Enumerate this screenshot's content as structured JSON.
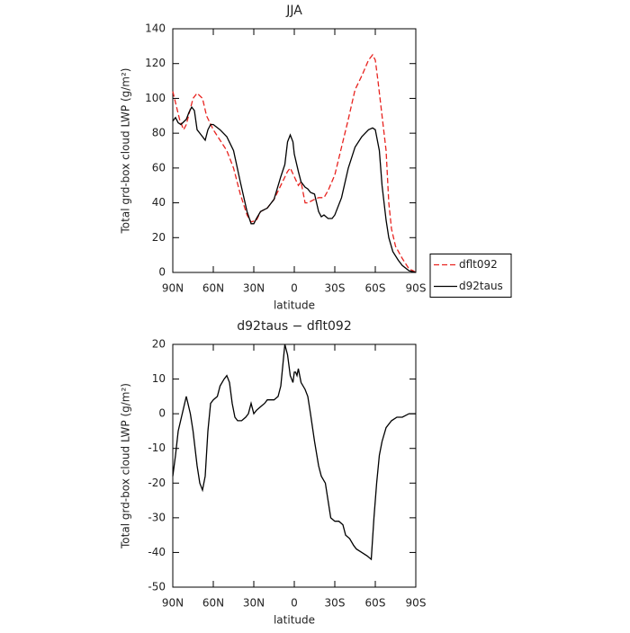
{
  "chart_data": [
    {
      "type": "line",
      "title": "JJA",
      "xlabel": "latitude",
      "ylabel": "Total grd-box cloud LWP (g/m²)",
      "xlim": [
        90,
        -90
      ],
      "xticks": [
        {
          "value": 90,
          "label": "90N"
        },
        {
          "value": 60,
          "label": "60N"
        },
        {
          "value": 30,
          "label": "30N"
        },
        0,
        {
          "value": -30,
          "label": "30S"
        },
        {
          "value": -60,
          "label": "60S"
        },
        {
          "value": -90,
          "label": "90S"
        }
      ],
      "ylim": [
        0,
        140
      ],
      "yticks": [
        0,
        20,
        40,
        60,
        80,
        100,
        120,
        140
      ],
      "legend": "outside right",
      "series": [
        {
          "name": "dflt092",
          "color": "#e8231f",
          "line_style": "dashed",
          "x": [
            90,
            85,
            82,
            80,
            75,
            72,
            68,
            65,
            60,
            55,
            50,
            45,
            40,
            35,
            32,
            28,
            25,
            20,
            15,
            10,
            5,
            3,
            0,
            -3,
            -5,
            -8,
            -10,
            -15,
            -18,
            -22,
            -25,
            -30,
            -35,
            -40,
            -45,
            -50,
            -55,
            -58,
            -60,
            -62,
            -65,
            -68,
            -70,
            -72,
            -75,
            -80,
            -85,
            -88,
            -90
          ],
          "values": [
            104,
            88,
            82,
            85,
            100,
            103,
            100,
            90,
            82,
            76,
            70,
            60,
            45,
            33,
            29,
            30,
            35,
            37,
            42,
            50,
            58,
            60,
            55,
            50,
            52,
            40,
            40,
            42,
            43,
            43,
            47,
            56,
            72,
            88,
            105,
            113,
            122,
            125,
            122,
            110,
            90,
            70,
            40,
            25,
            15,
            8,
            2,
            1,
            0
          ]
        },
        {
          "name": "d92taus",
          "color": "#000000",
          "line_style": "solid",
          "x": [
            90,
            88,
            86,
            84,
            80,
            78,
            76,
            74,
            72,
            70,
            68,
            66,
            64,
            62,
            60,
            55,
            50,
            45,
            40,
            35,
            32,
            30,
            28,
            25,
            20,
            15,
            10,
            7,
            5,
            3,
            1,
            0,
            -3,
            -5,
            -8,
            -10,
            -12,
            -15,
            -18,
            -20,
            -22,
            -25,
            -28,
            -30,
            -35,
            -40,
            -45,
            -50,
            -55,
            -58,
            -60,
            -63,
            -65,
            -68,
            -70,
            -73,
            -77,
            -80,
            -85,
            -90
          ],
          "values": [
            87,
            89,
            86,
            85,
            88,
            92,
            95,
            93,
            82,
            80,
            78,
            76,
            82,
            85,
            85,
            82,
            78,
            70,
            52,
            35,
            28,
            28,
            31,
            35,
            37,
            42,
            55,
            62,
            75,
            79,
            75,
            68,
            58,
            52,
            49,
            48,
            46,
            45,
            35,
            32,
            33,
            31,
            31,
            33,
            43,
            60,
            72,
            78,
            82,
            83,
            82,
            70,
            50,
            30,
            20,
            12,
            7,
            4,
            1,
            0
          ]
        }
      ]
    },
    {
      "type": "line",
      "title": "d92taus − dflt092",
      "xlabel": "latitude",
      "ylabel": "Total grd-box cloud LWP (g/m²)",
      "xlim": [
        90,
        -90
      ],
      "xticks": [
        {
          "value": 90,
          "label": "90N"
        },
        {
          "value": 60,
          "label": "60N"
        },
        {
          "value": 30,
          "label": "30N"
        },
        0,
        {
          "value": -30,
          "label": "30S"
        },
        {
          "value": -60,
          "label": "60S"
        },
        {
          "value": -90,
          "label": "90S"
        }
      ],
      "ylim": [
        -50,
        20
      ],
      "yticks": [
        -50,
        -40,
        -30,
        -20,
        -10,
        0,
        10,
        20
      ],
      "series": [
        {
          "color": "#000000",
          "line_style": "solid",
          "x": [
            90,
            88,
            86,
            83,
            80,
            77,
            75,
            72,
            70,
            68,
            66,
            64,
            62,
            60,
            57,
            55,
            52,
            50,
            48,
            46,
            44,
            42,
            39,
            36,
            34,
            32,
            30,
            28,
            25,
            22,
            20,
            15,
            12,
            10,
            8,
            7,
            5,
            3,
            1,
            0,
            -1,
            -2,
            -3,
            -5,
            -8,
            -10,
            -12,
            -15,
            -18,
            -20,
            -23,
            -25,
            -27,
            -30,
            -33,
            -36,
            -38,
            -41,
            -44,
            -46,
            -50,
            -54,
            -57,
            -59,
            -61,
            -63,
            -65,
            -68,
            -72,
            -76,
            -80,
            -85,
            -90
          ],
          "values": [
            -18,
            -12,
            -5,
            0,
            5,
            0,
            -5,
            -15,
            -20,
            -22,
            -18,
            -5,
            3,
            4,
            5,
            8,
            10,
            11,
            9,
            3,
            -1,
            -2,
            -2,
            -1,
            0,
            3,
            0,
            1,
            2,
            3,
            4,
            4,
            5,
            8,
            16,
            20,
            17,
            11,
            9,
            12,
            12,
            11,
            13,
            9,
            7,
            5,
            0,
            -8,
            -15,
            -18,
            -20,
            -25,
            -30,
            -31,
            -31,
            -32,
            -35,
            -36,
            -38,
            -39,
            -40,
            -41,
            -42,
            -30,
            -20,
            -12,
            -8,
            -4,
            -2,
            -1,
            -1,
            0,
            0
          ]
        }
      ]
    }
  ]
}
